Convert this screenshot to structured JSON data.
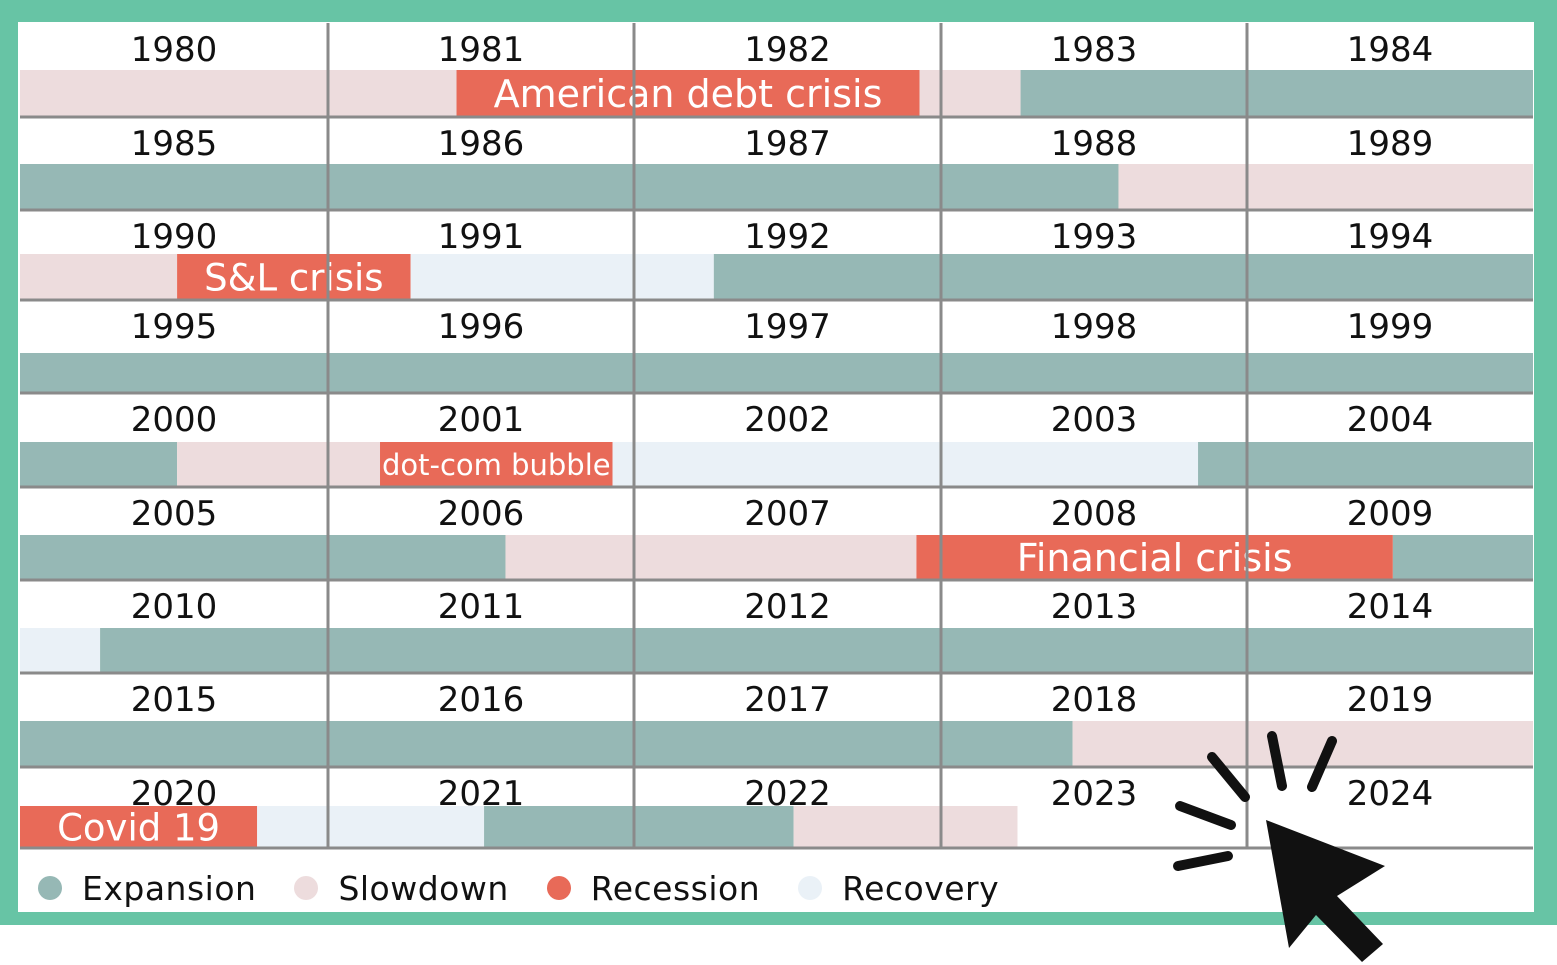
{
  "chart_data": {
    "type": "timeline",
    "title": "",
    "start_year": 1980,
    "end_year": 2024,
    "years_per_row": 5,
    "phases": [
      "expansion",
      "slowdown",
      "recession",
      "recovery"
    ],
    "legend": [
      {
        "key": "expansion",
        "label": "Expansion",
        "color": "#96b8b5"
      },
      {
        "key": "slowdown",
        "label": "Slowdown",
        "color": "#eddcdd"
      },
      {
        "key": "recession",
        "label": "Recession",
        "color": "#e86a58"
      },
      {
        "key": "recovery",
        "label": "Recovery",
        "color": "#eaf1f7"
      }
    ],
    "rows": [
      {
        "years": [
          "1980",
          "1981",
          "1982",
          "1983",
          "1984"
        ],
        "segments": [
          {
            "phase": "slowdown",
            "start": 1980.0,
            "end": 1981.42
          },
          {
            "phase": "recession",
            "start": 1981.42,
            "end": 1982.93
          },
          {
            "phase": "slowdown",
            "start": 1982.93,
            "end": 1983.26
          },
          {
            "phase": "expansion",
            "start": 1983.26,
            "end": 1985.0
          }
        ],
        "labels": [
          {
            "text": "American debt crisis",
            "start": 1981.42,
            "end": 1982.93,
            "size": 38
          }
        ]
      },
      {
        "years": [
          "1985",
          "1986",
          "1987",
          "1988",
          "1989"
        ],
        "segments": [
          {
            "phase": "expansion",
            "start": 1985.0,
            "end": 1988.58
          },
          {
            "phase": "slowdown",
            "start": 1988.58,
            "end": 1990.0
          }
        ],
        "labels": []
      },
      {
        "years": [
          "1990",
          "1991",
          "1992",
          "1993",
          "1994"
        ],
        "segments": [
          {
            "phase": "slowdown",
            "start": 1990.0,
            "end": 1990.51
          },
          {
            "phase": "recession",
            "start": 1990.51,
            "end": 1991.27
          },
          {
            "phase": "recovery",
            "start": 1991.27,
            "end": 1992.26
          },
          {
            "phase": "expansion",
            "start": 1992.26,
            "end": 1995.0
          }
        ],
        "labels": [
          {
            "text": "S&L crisis",
            "start": 1990.51,
            "end": 1991.27,
            "size": 37
          }
        ]
      },
      {
        "years": [
          "1995",
          "1996",
          "1997",
          "1998",
          "1999"
        ],
        "segments": [
          {
            "phase": "expansion",
            "start": 1995.0,
            "end": 2000.0
          }
        ],
        "labels": []
      },
      {
        "years": [
          "2000",
          "2001",
          "2002",
          "2003",
          "2004"
        ],
        "segments": [
          {
            "phase": "expansion",
            "start": 2000.0,
            "end": 2000.51
          },
          {
            "phase": "slowdown",
            "start": 2000.51,
            "end": 2001.17
          },
          {
            "phase": "recession",
            "start": 2001.17,
            "end": 2001.93
          },
          {
            "phase": "recovery",
            "start": 2001.93,
            "end": 2003.84
          },
          {
            "phase": "expansion",
            "start": 2003.84,
            "end": 2005.0
          }
        ],
        "labels": [
          {
            "text": "dot-com bubble",
            "start": 2001.17,
            "end": 2001.93,
            "size": 29
          }
        ]
      },
      {
        "years": [
          "2005",
          "2006",
          "2007",
          "2008",
          "2009"
        ],
        "segments": [
          {
            "phase": "expansion",
            "start": 2005.0,
            "end": 2006.58
          },
          {
            "phase": "slowdown",
            "start": 2006.58,
            "end": 2007.92
          },
          {
            "phase": "recession",
            "start": 2007.92,
            "end": 2009.51
          },
          {
            "phase": "expansion",
            "start": 2009.51,
            "end": 2010.0
          }
        ],
        "labels": [
          {
            "text": "Financial crisis",
            "start": 2007.92,
            "end": 2009.51,
            "size": 38
          }
        ]
      },
      {
        "years": [
          "2010",
          "2011",
          "2012",
          "2013",
          "2014"
        ],
        "segments": [
          {
            "phase": "recovery",
            "start": 2010.0,
            "end": 2010.26
          },
          {
            "phase": "expansion",
            "start": 2010.26,
            "end": 2015.0
          }
        ],
        "labels": []
      },
      {
        "years": [
          "2015",
          "2016",
          "2017",
          "2018",
          "2019"
        ],
        "segments": [
          {
            "phase": "expansion",
            "start": 2015.0,
            "end": 2018.43
          },
          {
            "phase": "slowdown",
            "start": 2018.43,
            "end": 2020.0
          }
        ],
        "labels": []
      },
      {
        "years": [
          "2020",
          "2021",
          "2022",
          "2023",
          "2024"
        ],
        "segments": [
          {
            "phase": "recession",
            "start": 2020.0,
            "end": 2020.77
          },
          {
            "phase": "recovery",
            "start": 2020.77,
            "end": 2021.51
          },
          {
            "phase": "expansion",
            "start": 2021.51,
            "end": 2022.52
          },
          {
            "phase": "slowdown",
            "start": 2022.52,
            "end": 2023.25
          }
        ],
        "labels": [
          {
            "text": "Covid 19",
            "start": 2020.0,
            "end": 2020.77,
            "size": 37
          }
        ]
      }
    ]
  }
}
